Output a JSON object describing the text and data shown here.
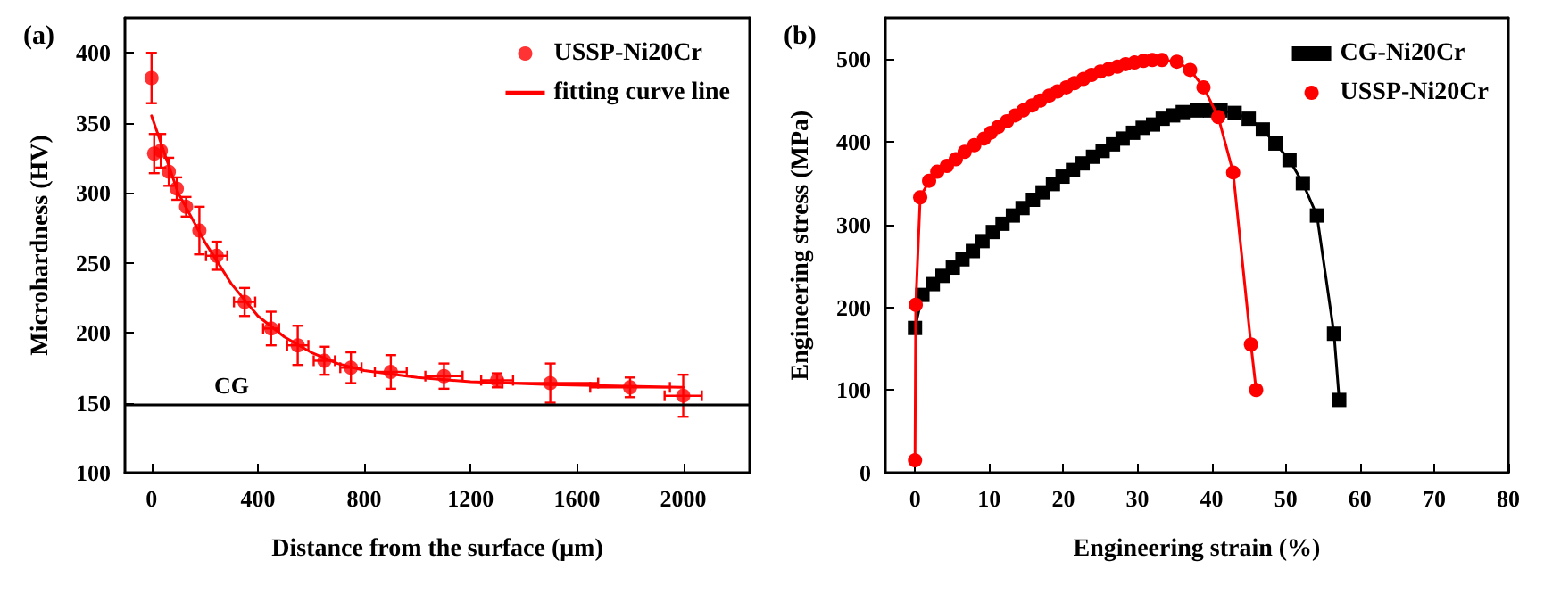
{
  "chart_data": [
    {
      "type": "scatter",
      "title": "(a)",
      "xlabel": "Distance from the surface (μm)",
      "ylabel": "Microhardness (HV)",
      "xlim": [
        -100,
        2250
      ],
      "xticks": [
        0,
        400,
        800,
        1200,
        1600,
        2000
      ],
      "ylim": [
        100,
        425
      ],
      "yticks": [
        100,
        150,
        200,
        250,
        300,
        350,
        400
      ],
      "grid": false,
      "legend": "top right",
      "ref_lines": [
        {
          "axis": "y",
          "value": 149,
          "label": "CG",
          "color": "#000000"
        }
      ],
      "series": [
        {
          "name": "USSP-Ni20Cr",
          "color": "#ff0000",
          "marker": "circle",
          "x": [
            0,
            10,
            35,
            65,
            95,
            130,
            180,
            245,
            350,
            450,
            550,
            650,
            750,
            900,
            1100,
            1300,
            1500,
            1800,
            2000
          ],
          "values": [
            382,
            328,
            330,
            315,
            303,
            290,
            273,
            255,
            222,
            203,
            191,
            180,
            175,
            172,
            169,
            166,
            164,
            161,
            155
          ],
          "errors": [
            18,
            14,
            12,
            10,
            8,
            7,
            17,
            10,
            10,
            12,
            14,
            10,
            11,
            12,
            9,
            5,
            14,
            7,
            15
          ],
          "xerrors": [
            null,
            null,
            null,
            null,
            null,
            null,
            null,
            40,
            40,
            30,
            40,
            40,
            40,
            60,
            70,
            60,
            180,
            150,
            70
          ]
        },
        {
          "name": "fitting curve line",
          "type": "line",
          "color": "#ff0000",
          "marker": "none",
          "x": [
            0,
            100,
            200,
            300,
            400,
            500,
            600,
            700,
            800,
            1000,
            1200,
            1500,
            2000
          ],
          "values": [
            355,
            300,
            265,
            235,
            212,
            197,
            186,
            178,
            173,
            168,
            165,
            163,
            161
          ]
        }
      ]
    },
    {
      "type": "line",
      "title": "(b)",
      "xlabel": "Engineering strain (%)",
      "ylabel": "Engineering stress (MPa)",
      "xlim": [
        -4,
        80
      ],
      "xticks": [
        0,
        10,
        20,
        30,
        40,
        50,
        60,
        70,
        80
      ],
      "ylim": [
        0,
        550
      ],
      "yticks": [
        0,
        100,
        200,
        300,
        400,
        500
      ],
      "grid": false,
      "legend": "top right",
      "series": [
        {
          "name": "CG-Ni20Cr",
          "color": "#000000",
          "marker": "square",
          "x": [
            0,
            1,
            2.4,
            3.7,
            5.1,
            6.4,
            7.8,
            9.1,
            10.5,
            11.8,
            13.2,
            14.5,
            15.9,
            17.2,
            18.6,
            19.9,
            21.3,
            22.6,
            24,
            25.3,
            26.7,
            28,
            29.4,
            30.7,
            32.1,
            33.4,
            34.8,
            36.1,
            38,
            39.8,
            41.2,
            43.1,
            45,
            46.9,
            48.6,
            50.5,
            52.3,
            54.2,
            56.5,
            57.2
          ],
          "values": [
            175,
            215,
            228,
            238,
            248,
            258,
            268,
            280,
            291,
            301,
            311,
            320,
            330,
            339,
            349,
            358,
            366,
            374,
            382,
            389,
            397,
            404,
            411,
            417,
            421,
            428,
            432,
            436,
            438,
            438,
            438,
            435,
            428,
            415,
            398,
            378,
            350,
            311,
            168,
            88
          ]
        },
        {
          "name": "USSP-Ni20Cr",
          "color": "#ff0000",
          "marker": "circle",
          "x": [
            0,
            0.1,
            0.7,
            1.9,
            3,
            4.3,
            5.5,
            6.7,
            8,
            9.3,
            10.2,
            11.2,
            12.4,
            13.5,
            14.6,
            15.8,
            16.9,
            18.1,
            19.2,
            20.4,
            21.5,
            22.7,
            23.8,
            25,
            26.1,
            27.3,
            28.4,
            29.6,
            30.8,
            32,
            33.3,
            35.3,
            37.1,
            38.9,
            40.9,
            42.9,
            45.3,
            46
          ],
          "values": [
            15,
            203,
            333,
            353,
            364,
            371,
            379,
            388,
            396,
            404,
            411,
            418,
            425,
            432,
            438,
            444,
            450,
            456,
            461,
            466,
            471,
            476,
            481,
            485,
            488,
            491,
            494,
            496,
            498,
            499,
            499,
            497,
            487,
            466,
            430,
            363,
            155,
            100
          ]
        }
      ]
    }
  ]
}
